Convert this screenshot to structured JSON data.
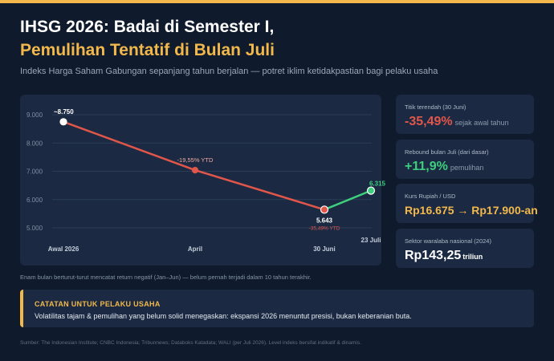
{
  "header": {
    "title_line1": "IHSG 2026: Badai di Semester I,",
    "title_line2": "Pemulihan Tentatif di Bulan Juli",
    "subtitle": "Indeks Harga Saham Gabungan sepanjang tahun berjalan — potret iklim ketidakpastian bagi pelaku usaha"
  },
  "colors": {
    "accent": "#f2b84b",
    "decline": "#e0564a",
    "recovery": "#3ecf7e",
    "background": "#0f1a2c",
    "card": "#1b2a42"
  },
  "chart_data": {
    "type": "line",
    "categories": [
      "Awal 2026",
      "April",
      "30 Juni",
      "23 Juli"
    ],
    "series": [
      {
        "name": "",
        "values": [
          8750,
          7040,
          5643,
          6315
        ],
        "point_labels": [
          "~8.750",
          "",
          "5.643",
          "6.315"
        ],
        "annotations": [
          "",
          "-19,55% YTD",
          "-35,49% YTD",
          ""
        ]
      }
    ],
    "segment_colors": [
      "#e0564a",
      "#e0564a",
      "#3ecf7e"
    ],
    "ylim": [
      4600,
      9300
    ],
    "yticks": [
      "9.000",
      "8.000",
      "7.000",
      "6.000",
      "5.000"
    ],
    "ytick_values": [
      9000,
      8000,
      7000,
      6000,
      5000
    ],
    "grid": true,
    "title": "",
    "xlabel": "",
    "ylabel": ""
  },
  "stats": [
    {
      "label": "Titik terendah (30 Juni)",
      "value": "-35,49%",
      "unit": "sejak awal tahun"
    },
    {
      "label": "Rebound bulan Juli (dari dasar)",
      "value": "+11,9%",
      "unit": "pemulihan"
    },
    {
      "label": "Kurs Rupiah / USD",
      "value": "Rp16.675 → Rp17.900-an",
      "unit": ""
    },
    {
      "label": "Sektor waralaba nasional (2024)",
      "value": "Rp143,25",
      "unit": "triliun"
    }
  ],
  "chart_footnote": "Enam bulan berturut-turut mencatat return negatif (Jan–Jun) — belum pernah terjadi dalam 10 tahun terakhir.",
  "note": {
    "title": "CATATAN UNTUK PELAKU USAHA",
    "text": "Volatilitas tajam & pemulihan yang belum solid menegaskan: ekspansi 2026 menuntut presisi, bukan keberanian buta."
  },
  "source": "Sumber: The Indonesian Institute; CNBC Indonesia; Tribunnews; Databoks Katadata; WALI (per Juli 2026). Level indeks bersifat indikatif & dinamis."
}
